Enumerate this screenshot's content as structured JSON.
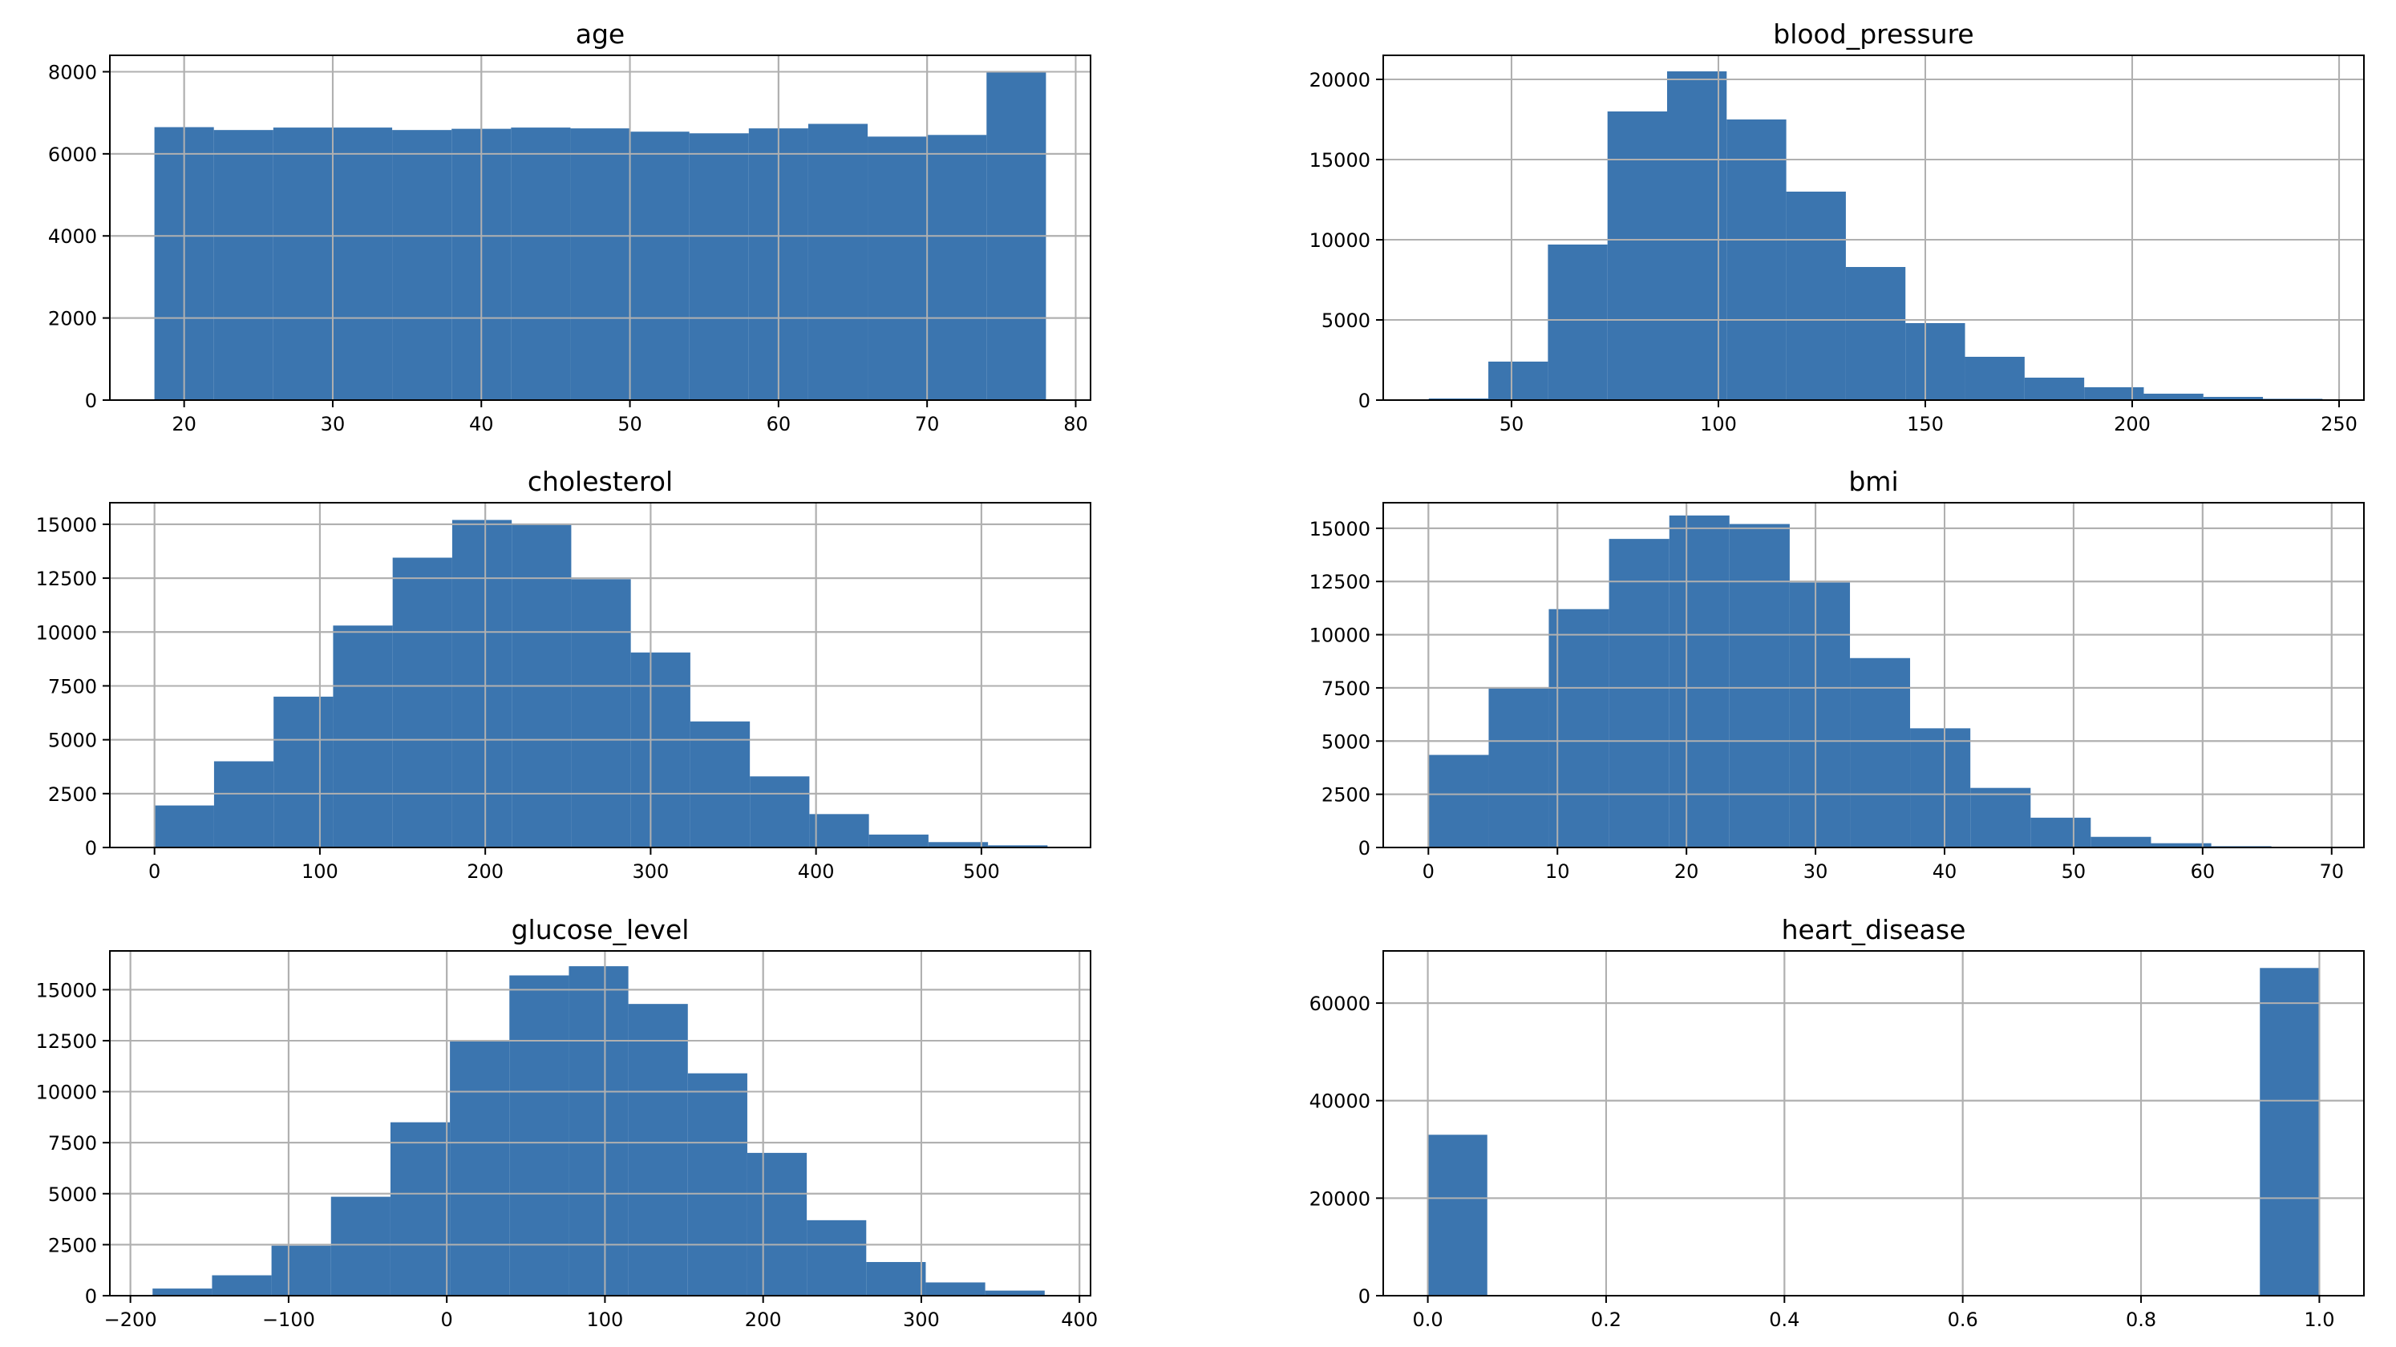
{
  "colors": {
    "bar": "#3b75af",
    "grid": "#b0b0b0",
    "frame": "#000000",
    "background": "#ffffff"
  },
  "chart_data": [
    {
      "type": "bar",
      "title": "age",
      "xlim": [
        15,
        81
      ],
      "ylim": [
        0,
        8400
      ],
      "xticks": [
        20,
        30,
        40,
        50,
        60,
        70,
        80
      ],
      "yticks": [
        0,
        2000,
        4000,
        6000,
        8000
      ],
      "grid": true,
      "bin_edges": [
        18,
        22,
        26,
        30,
        34,
        38,
        42,
        46,
        50,
        54,
        58,
        62,
        66,
        70,
        74,
        78
      ],
      "counts": [
        6650,
        6580,
        6640,
        6640,
        6580,
        6610,
        6640,
        6620,
        6540,
        6500,
        6620,
        6730,
        6420,
        6460,
        7980
      ]
    },
    {
      "type": "bar",
      "title": "blood_pressure",
      "xlim": [
        19,
        256
      ],
      "ylim": [
        0,
        21500
      ],
      "xticks": [
        50,
        100,
        150,
        200,
        250
      ],
      "yticks": [
        0,
        5000,
        10000,
        15000,
        20000
      ],
      "grid": true,
      "bin_edges": [
        30,
        44.4,
        58.8,
        73.2,
        87.6,
        102,
        116.4,
        130.8,
        145.2,
        159.6,
        174,
        188.4,
        202.8,
        217.2,
        231.6,
        246
      ],
      "counts": [
        100,
        2400,
        9700,
        18000,
        20500,
        17500,
        13000,
        8300,
        4800,
        2700,
        1400,
        800,
        400,
        200,
        80
      ]
    },
    {
      "type": "bar",
      "title": "cholesterol",
      "xlim": [
        -27,
        566
      ],
      "ylim": [
        0,
        16000
      ],
      "xticks": [
        0,
        100,
        200,
        300,
        400,
        500
      ],
      "yticks": [
        0,
        2500,
        5000,
        7500,
        10000,
        12500,
        15000
      ],
      "grid": true,
      "bin_edges": [
        0,
        36,
        72,
        108,
        144,
        180,
        216,
        252,
        288,
        324,
        360,
        396,
        432,
        468,
        504,
        540
      ],
      "counts": [
        1950,
        4000,
        7000,
        10300,
        13450,
        15200,
        15000,
        12450,
        9050,
        5850,
        3300,
        1550,
        600,
        250,
        100
      ]
    },
    {
      "type": "bar",
      "title": "bmi",
      "xlim": [
        -3.5,
        72.5
      ],
      "ylim": [
        0,
        16200
      ],
      "xticks": [
        0,
        10,
        20,
        30,
        40,
        50,
        60,
        70
      ],
      "yticks": [
        0,
        2500,
        5000,
        7500,
        10000,
        12500,
        15000
      ],
      "grid": true,
      "bin_edges": [
        0,
        4.67,
        9.33,
        14,
        18.67,
        23.33,
        28,
        32.67,
        37.33,
        42,
        46.67,
        51.33,
        56,
        60.67,
        65.33,
        70
      ],
      "counts": [
        4350,
        7500,
        11200,
        14500,
        15600,
        15200,
        12450,
        8900,
        5600,
        2800,
        1400,
        500,
        200,
        60,
        20
      ]
    },
    {
      "type": "bar",
      "title": "glucose_level",
      "xlim": [
        -213,
        407
      ],
      "ylim": [
        0,
        16900
      ],
      "xticks": [
        -200,
        -100,
        0,
        100,
        200,
        300,
        400
      ],
      "yticks": [
        0,
        2500,
        5000,
        7500,
        10000,
        12500,
        15000
      ],
      "grid": true,
      "bin_edges": [
        -186,
        -148.4,
        -110.8,
        -73.2,
        -35.6,
        2,
        39.6,
        77.2,
        114.8,
        152.4,
        190,
        227.6,
        265.2,
        302.8,
        340.4,
        378
      ],
      "counts": [
        350,
        1000,
        2450,
        4850,
        8500,
        12500,
        15700,
        16150,
        14300,
        10900,
        7000,
        3700,
        1650,
        650,
        250
      ]
    },
    {
      "type": "bar",
      "title": "heart_disease",
      "xlim": [
        -0.05,
        1.05
      ],
      "ylim": [
        0,
        70700
      ],
      "xticks": [
        0.0,
        0.2,
        0.4,
        0.6,
        0.8,
        1.0
      ],
      "yticks": [
        0,
        20000,
        40000,
        60000
      ],
      "grid": true,
      "bin_edges": [
        0,
        0.0667,
        0.9333,
        1.0
      ],
      "counts": [
        33000,
        0,
        67200
      ]
    }
  ]
}
